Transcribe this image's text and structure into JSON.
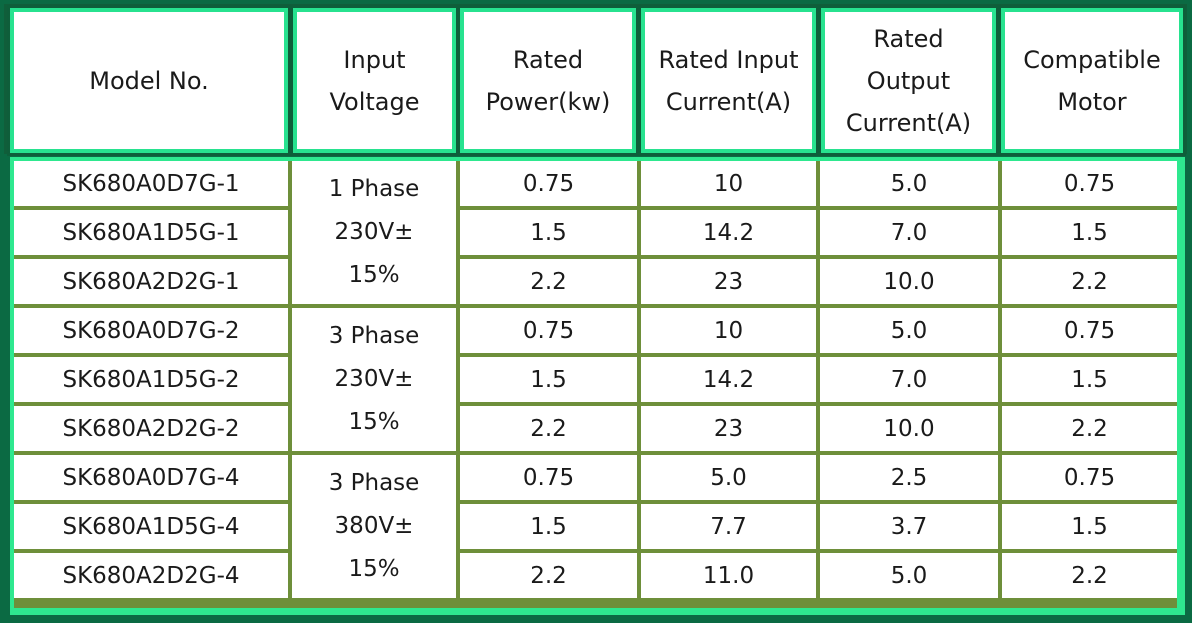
{
  "headers": [
    "Model No.",
    "Input\nVoltage",
    "Rated\nPower(kw)",
    "Rated Input\nCurrent(A)",
    "Rated\nOutput\nCurrent(A)",
    "Compatible\nMotor"
  ],
  "groups": [
    {
      "voltage": [
        "1 Phase",
        "230V±",
        "15%"
      ],
      "rows": [
        {
          "model": "SK680A0D7G-1",
          "power": "0.75",
          "input_current": "10",
          "output_current": "5.0",
          "motor": "0.75"
        },
        {
          "model": "SK680A1D5G-1",
          "power": "1.5",
          "input_current": "14.2",
          "output_current": "7.0",
          "motor": "1.5"
        },
        {
          "model": "SK680A2D2G-1",
          "power": "2.2",
          "input_current": "23",
          "output_current": "10.0",
          "motor": "2.2"
        }
      ]
    },
    {
      "voltage": [
        "3 Phase",
        "230V±",
        "15%"
      ],
      "rows": [
        {
          "model": "SK680A0D7G-2",
          "power": "0.75",
          "input_current": "10",
          "output_current": "5.0",
          "motor": "0.75"
        },
        {
          "model": "SK680A1D5G-2",
          "power": "1.5",
          "input_current": "14.2",
          "output_current": "7.0",
          "motor": "1.5"
        },
        {
          "model": "SK680A2D2G-2",
          "power": "2.2",
          "input_current": "23",
          "output_current": "10.0",
          "motor": "2.2"
        }
      ]
    },
    {
      "voltage": [
        "3 Phase",
        "380V±",
        "15%"
      ],
      "rows": [
        {
          "model": "SK680A0D7G-4",
          "power": "0.75",
          "input_current": "5.0",
          "output_current": "2.5",
          "motor": "0.75"
        },
        {
          "model": "SK680A1D5G-4",
          "power": "1.5",
          "input_current": "7.7",
          "output_current": "3.7",
          "motor": "1.5"
        },
        {
          "model": "SK680A2D2G-4",
          "power": "2.2",
          "input_current": "11.0",
          "output_current": "5.0",
          "motor": "2.2"
        }
      ]
    }
  ],
  "colors": {
    "background": "#0b6a43",
    "header_border": "#27e28f",
    "grid_line": "#6e8f3a"
  }
}
